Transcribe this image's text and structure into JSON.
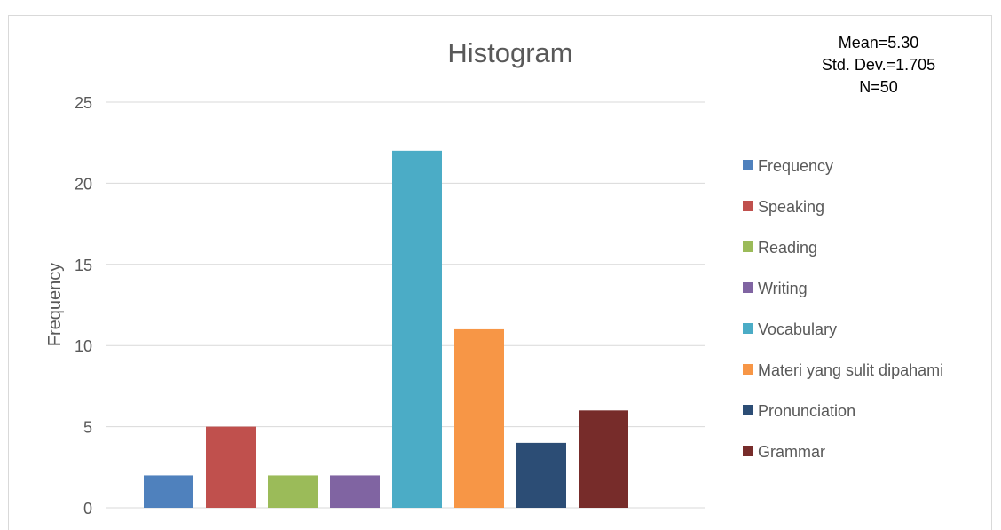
{
  "chart_data": {
    "type": "bar",
    "title": "Histogram",
    "ylabel": "Frequency",
    "xlabel": "",
    "ylim": [
      0,
      25
    ],
    "yticks": [
      0,
      5,
      10,
      15,
      20,
      25
    ],
    "grid": true,
    "legend_position": "right",
    "series": [
      {
        "name": "Frequency",
        "value": 2,
        "color": "#4f81bd"
      },
      {
        "name": "Speaking",
        "value": 5,
        "color": "#c0504d"
      },
      {
        "name": "Reading",
        "value": 2,
        "color": "#9bbb59"
      },
      {
        "name": "Writing",
        "value": 2,
        "color": "#8064a2"
      },
      {
        "name": "Vocabulary",
        "value": 22,
        "color": "#4bacc6"
      },
      {
        "name": "Materi yang sulit dipahami",
        "value": 11,
        "color": "#f79646"
      },
      {
        "name": "Pronunciation",
        "value": 4,
        "color": "#2c4d75"
      },
      {
        "name": "Grammar",
        "value": 6,
        "color": "#772c2a"
      }
    ]
  },
  "stats": {
    "mean": "Mean=5.30",
    "std_dev": "Std. Dev.=1.705",
    "n": "N=50"
  }
}
